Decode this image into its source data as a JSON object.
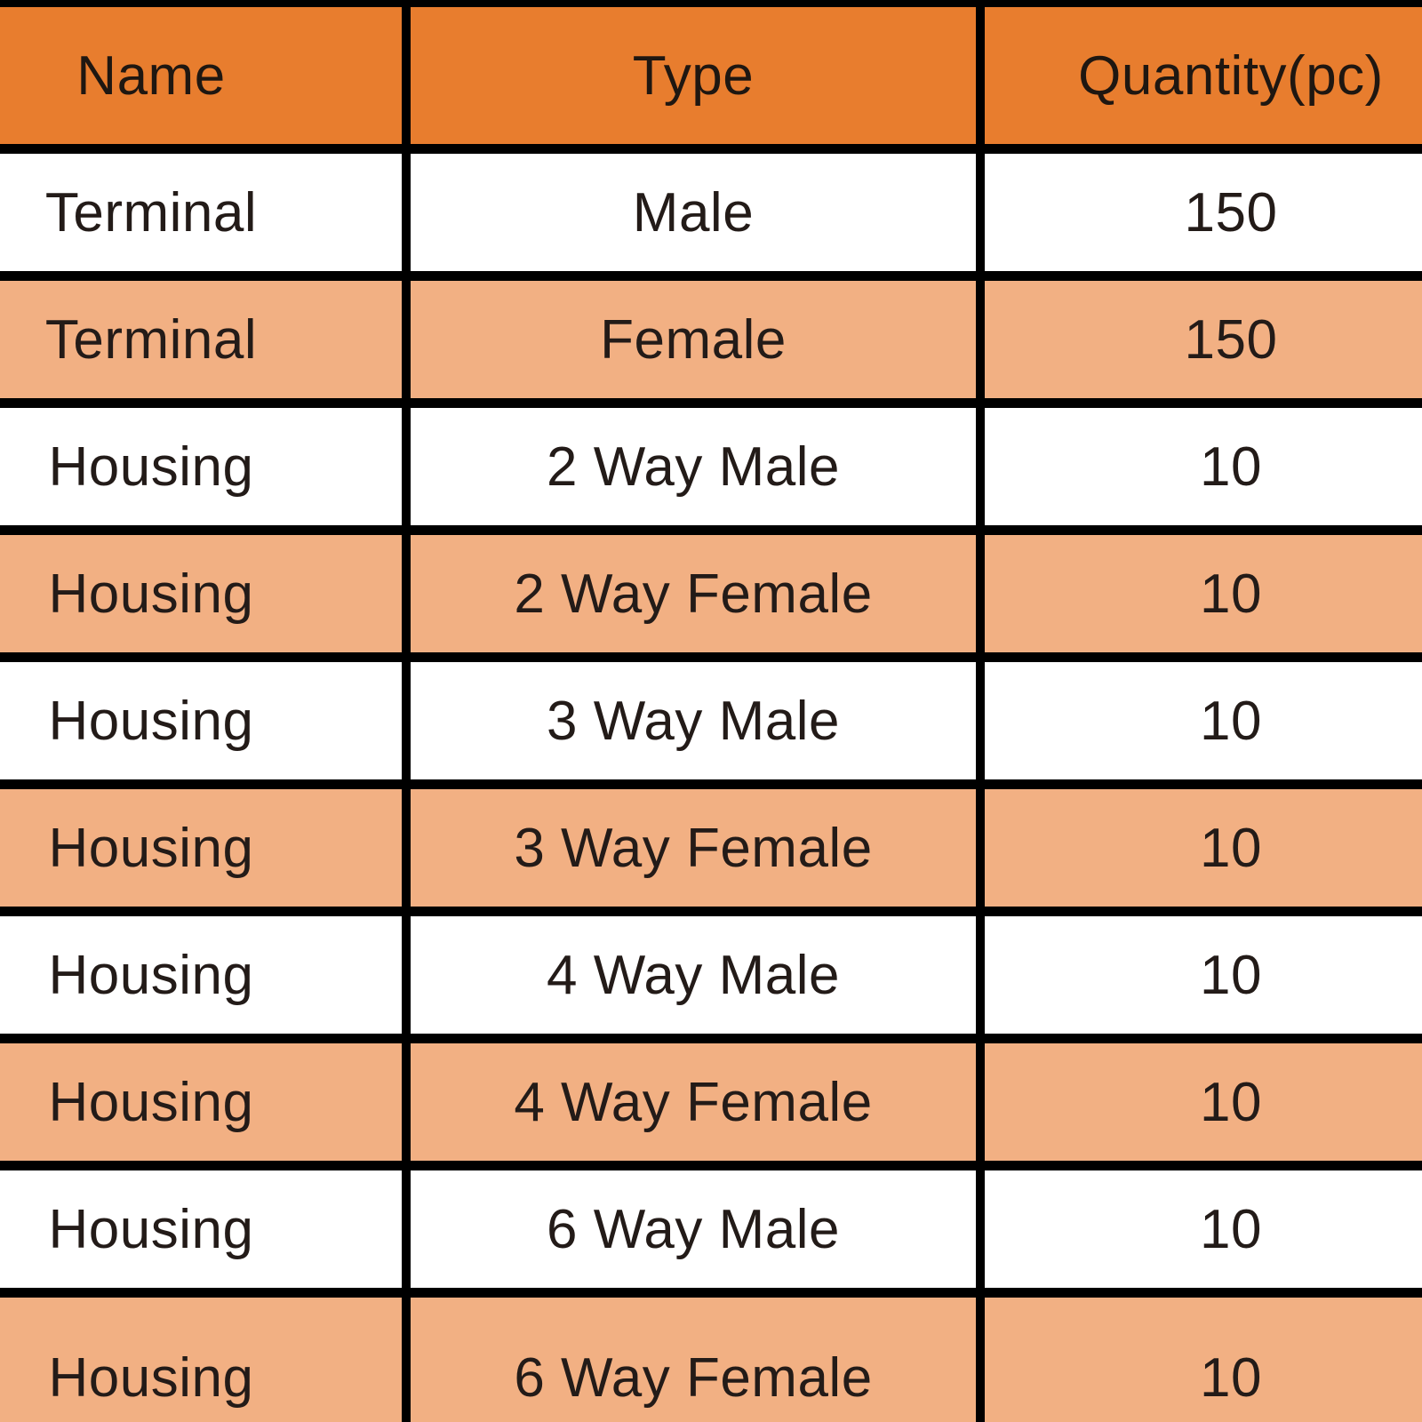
{
  "chart_data": {
    "type": "table",
    "title": "",
    "columns": [
      "Name",
      "Type",
      "Quantity(pc)"
    ],
    "rows": [
      {
        "name": "Terminal",
        "type": "Male",
        "quantity": "150"
      },
      {
        "name": "Terminal",
        "type": "Female",
        "quantity": "150"
      },
      {
        "name": "Housing",
        "type": "2 Way Male",
        "quantity": "10"
      },
      {
        "name": "Housing",
        "type": "2 Way Female",
        "quantity": "10"
      },
      {
        "name": "Housing",
        "type": "3 Way Male",
        "quantity": "10"
      },
      {
        "name": "Housing",
        "type": "3 Way Female",
        "quantity": "10"
      },
      {
        "name": "Housing",
        "type": "4 Way Male",
        "quantity": "10"
      },
      {
        "name": "Housing",
        "type": "4 Way Female",
        "quantity": "10"
      },
      {
        "name": "Housing",
        "type": "6 Way Male",
        "quantity": "10"
      },
      {
        "name": "Housing",
        "type": "6 Way Female",
        "quantity": "10"
      }
    ],
    "layout": {
      "header_position": "top",
      "grid": "on",
      "zebra_striping": true,
      "last_row_clipped_at_bottom": true
    },
    "colors": {
      "header_bg": "#E87D2E",
      "row_bg": "#FFFFFF",
      "row_alt_bg": "#F2B083",
      "border": "#000000",
      "text": "#231B18"
    }
  }
}
